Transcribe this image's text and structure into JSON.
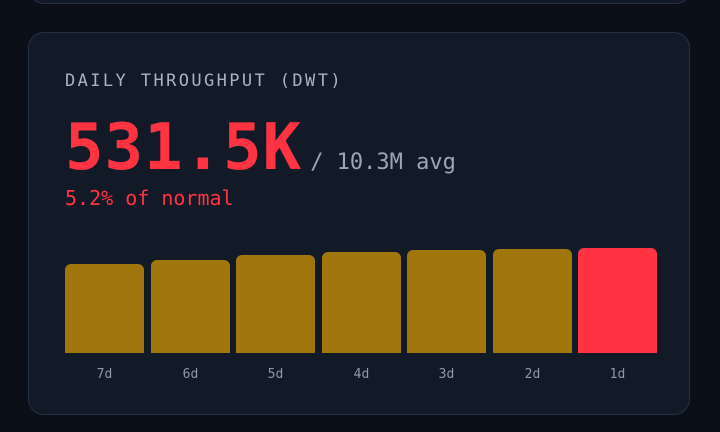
{
  "card": {
    "title": "DAILY THROUGHPUT (DWT)",
    "value": "531.5K",
    "avg": "/ 10.3M avg",
    "subtitle": "5.2% of normal"
  },
  "colors": {
    "normal_bar": "#a1770d",
    "alert_bar": "#ff3342",
    "alert_text": "#ff3342"
  },
  "chart_data": {
    "type": "bar",
    "categories": [
      "7d",
      "6d",
      "5d",
      "4d",
      "3d",
      "2d",
      "1d"
    ],
    "values": [
      89,
      93,
      98,
      101,
      103,
      104,
      105
    ],
    "highlight": "1d"
  }
}
